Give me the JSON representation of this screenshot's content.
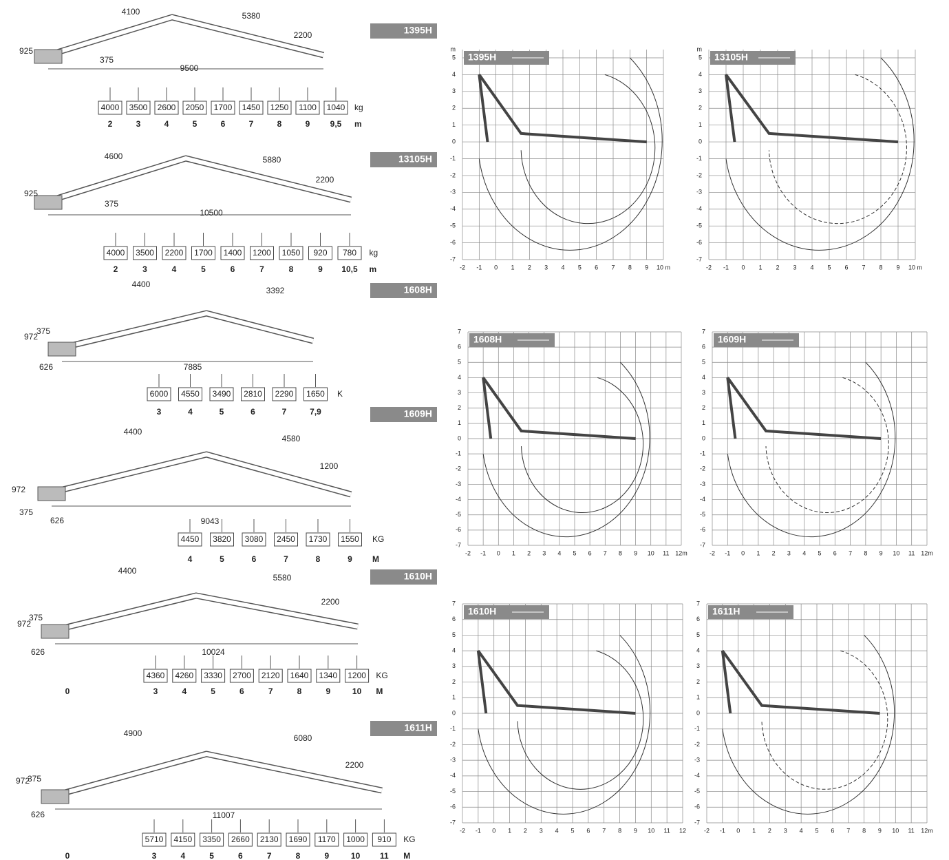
{
  "sections": [
    {
      "label": "1395H",
      "dims": [
        "4100",
        "5380",
        "2200",
        "925",
        "375",
        "9500"
      ],
      "loads": [
        "4000",
        "3500",
        "2600",
        "2050",
        "1700",
        "1450",
        "1250",
        "1100",
        "1040"
      ],
      "load_unit": "kg",
      "reach": [
        "2",
        "3",
        "4",
        "5",
        "6",
        "7",
        "8",
        "9",
        "9,5"
      ],
      "reach_unit": "m"
    },
    {
      "label": "13105H",
      "dims": [
        "4600",
        "5880",
        "2200",
        "925",
        "375",
        "10500"
      ],
      "loads": [
        "4000",
        "3500",
        "2200",
        "1700",
        "1400",
        "1200",
        "1050",
        "920",
        "780"
      ],
      "load_unit": "kg",
      "reach": [
        "2",
        "3",
        "4",
        "5",
        "6",
        "7",
        "8",
        "9",
        "10,5"
      ],
      "reach_unit": "m"
    },
    {
      "label": "1608H",
      "dims": [
        "4400",
        "3392",
        "972",
        "375",
        "626",
        "7885"
      ],
      "loads": [
        "6000",
        "4550",
        "3490",
        "2810",
        "2290",
        "1650"
      ],
      "load_unit": "K",
      "reach": [
        "3",
        "4",
        "5",
        "6",
        "7",
        "7,9"
      ]
    },
    {
      "label": "1609H",
      "dims": [
        "4400",
        "4580",
        "1200",
        "972",
        "375",
        "626",
        "9043"
      ],
      "loads": [
        "4450",
        "3820",
        "3080",
        "2450",
        "1730",
        "1550"
      ],
      "load_unit": "KG",
      "reach": [
        "4",
        "5",
        "6",
        "7",
        "8",
        "9"
      ],
      "reach_unit": "M"
    },
    {
      "label": "1610H",
      "dims": [
        "4400",
        "5580",
        "2200",
        "972",
        "375",
        "626",
        "10024"
      ],
      "loads": [
        "4360",
        "4260",
        "3330",
        "2700",
        "2120",
        "1640",
        "1340",
        "1200"
      ],
      "load_unit": "KG",
      "origin": "0",
      "reach": [
        "3",
        "4",
        "5",
        "6",
        "7",
        "8",
        "9",
        "10"
      ],
      "reach_unit": "M"
    },
    {
      "label": "1611H",
      "dims": [
        "4900",
        "6080",
        "2200",
        "972",
        "375",
        "626",
        "11007"
      ],
      "loads": [
        "5710",
        "4150",
        "3350",
        "2660",
        "2130",
        "1690",
        "1170",
        "1000",
        "910"
      ],
      "load_unit": "KG",
      "origin": "0",
      "reach": [
        "3",
        "4",
        "5",
        "6",
        "7",
        "8",
        "9",
        "10",
        "11"
      ],
      "reach_unit": "M"
    }
  ],
  "charts": [
    {
      "label": "1395H",
      "y_unit": "m",
      "yticks": [
        "5",
        "4",
        "3",
        "2",
        "1",
        "0",
        "-1",
        "-2",
        "-3",
        "-4",
        "-5",
        "-6",
        "-7"
      ],
      "xticks": [
        "-2",
        "-1",
        "0",
        "1",
        "2",
        "3",
        "4",
        "5",
        "6",
        "7",
        "8",
        "9",
        "10 m"
      ]
    },
    {
      "label": "13105H",
      "y_unit": "m",
      "yticks": [
        "5",
        "4",
        "3",
        "2",
        "1",
        "0",
        "-1",
        "-2",
        "-3",
        "-4",
        "-5",
        "-6",
        "-7"
      ],
      "xticks": [
        "-2",
        "-1",
        "0",
        "1",
        "2",
        "3",
        "4",
        "5",
        "6",
        "7",
        "8",
        "9",
        "10 m"
      ]
    },
    {
      "label": "1608H",
      "yticks": [
        "7",
        "6",
        "5",
        "4",
        "3",
        "2",
        "1",
        "0",
        "-1",
        "-2",
        "-3",
        "-4",
        "-5",
        "-6",
        "-7"
      ],
      "xticks": [
        "-2",
        "-1",
        "0",
        "1",
        "2",
        "3",
        "4",
        "5",
        "6",
        "7",
        "8",
        "9",
        "10",
        "11",
        "12m"
      ]
    },
    {
      "label": "1609H",
      "yticks": [
        "7",
        "6",
        "5",
        "4",
        "3",
        "2",
        "1",
        "0",
        "-1",
        "-2",
        "-3",
        "-4",
        "-5",
        "-6",
        "-7"
      ],
      "xticks": [
        "-2",
        "-1",
        "0",
        "1",
        "2",
        "3",
        "4",
        "5",
        "6",
        "7",
        "8",
        "9",
        "10",
        "11",
        "12m"
      ]
    },
    {
      "label": "1610H",
      "yticks": [
        "7",
        "6",
        "5",
        "4",
        "3",
        "2",
        "1",
        "0",
        "-1",
        "-2",
        "-3",
        "-4",
        "-5",
        "-6",
        "-7"
      ],
      "xticks": [
        "-2",
        "-1",
        "0",
        "1",
        "2",
        "3",
        "4",
        "5",
        "6",
        "7",
        "8",
        "9",
        "10",
        "11",
        "12"
      ]
    },
    {
      "label": "1611H",
      "yticks": [
        "7",
        "6",
        "5",
        "4",
        "3",
        "2",
        "1",
        "0",
        "-1",
        "-2",
        "-3",
        "-4",
        "-5",
        "-6",
        "-7"
      ],
      "xticks": [
        "-2",
        "-1",
        "0",
        "1",
        "2",
        "3",
        "4",
        "5",
        "6",
        "7",
        "8",
        "9",
        "10",
        "11",
        "12m"
      ]
    }
  ]
}
